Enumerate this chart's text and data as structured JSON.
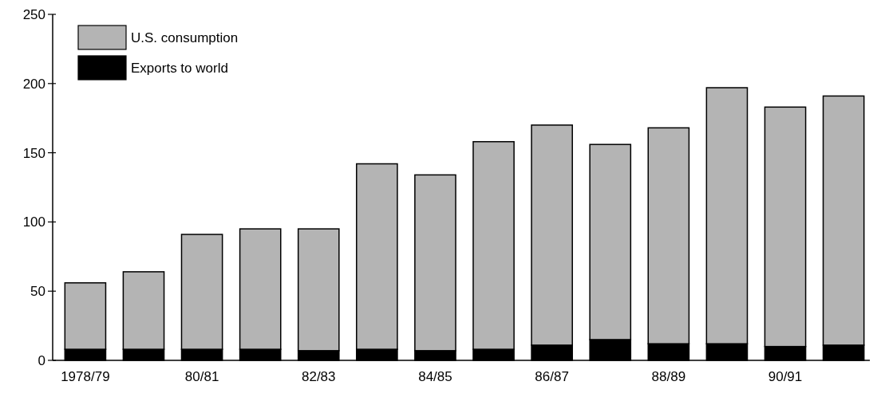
{
  "chart_data": {
    "type": "bar",
    "stacked": true,
    "categories": [
      "1978/79",
      null,
      "80/81",
      null,
      "82/83",
      null,
      "84/85",
      null,
      "86/87",
      null,
      "88/89",
      null,
      "90/91",
      null
    ],
    "series": [
      {
        "name": "Exports to world",
        "color": "#000000",
        "values": [
          8,
          8,
          8,
          8,
          7,
          8,
          7,
          8,
          11,
          15,
          12,
          12,
          10,
          11
        ]
      },
      {
        "name": "U.S. consumption",
        "color": "#b4b4b4",
        "values": [
          48,
          56,
          83,
          87,
          88,
          134,
          127,
          150,
          159,
          141,
          156,
          185,
          173,
          180
        ]
      }
    ],
    "ylim": [
      0,
      250
    ],
    "yticks": [
      0,
      50,
      100,
      150,
      200,
      250
    ],
    "legend": "top left"
  }
}
